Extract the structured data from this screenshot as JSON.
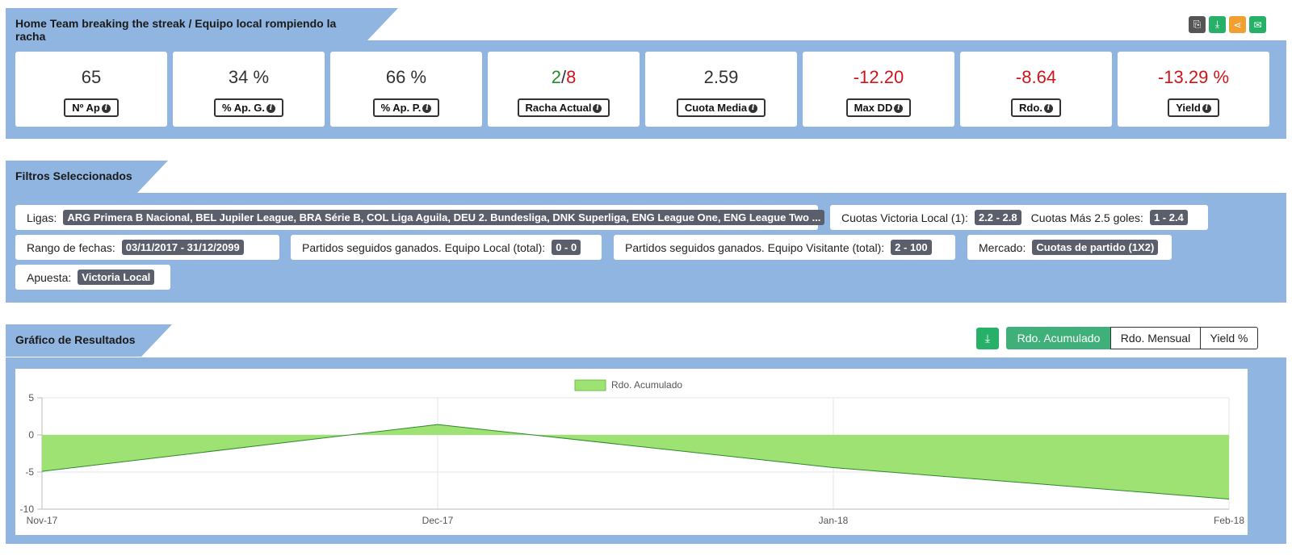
{
  "header": {
    "title": "Home Team breaking the streak / Equipo local rompiendo la racha",
    "actions": [
      {
        "name": "copy-icon",
        "glyph": "⎘",
        "color": "#555555"
      },
      {
        "name": "download-icon",
        "glyph": "⤓",
        "color": "#27b067"
      },
      {
        "name": "share-icon",
        "glyph": "⋖",
        "color": "#f0a030"
      },
      {
        "name": "email-icon",
        "glyph": "✉",
        "color": "#27b067"
      }
    ]
  },
  "kpis": [
    {
      "value": "65",
      "label": "Nº Ap"
    },
    {
      "value": "34 %",
      "label": "% Ap. G."
    },
    {
      "value": "66 %",
      "label": "% Ap. P."
    },
    {
      "value_a": "2",
      "value_sep": "/",
      "value_b": "8",
      "label": "Racha Actual"
    },
    {
      "value": "2.59",
      "label": "Cuota Media"
    },
    {
      "value": "-12.20",
      "label": "Max DD"
    },
    {
      "value": "-8.64",
      "label": "Rdo."
    },
    {
      "value": "-13.29 %",
      "label": "Yield"
    }
  ],
  "filters": {
    "title": "Filtros Seleccionados",
    "ligas": {
      "label": "Ligas:",
      "value": "ARG Primera B Nacional, BEL Jupiler League, BRA Série B, COL Liga Aguila, DEU 2. Bundesliga, DNK Superliga, ENG League One, ENG League Two ..."
    },
    "cuotas": {
      "label1": "Cuotas Victoria Local (1):",
      "value1": "2.2 - 2.8",
      "label2": "Cuotas Más 2.5 goles:",
      "value2": "1 - 2.4"
    },
    "fechas": {
      "label": "Rango de fechas:",
      "value": "03/11/2017 - 31/12/2099"
    },
    "local": {
      "label": "Partidos seguidos ganados. Equipo Local (total):",
      "value": "0 - 0"
    },
    "visitante": {
      "label": "Partidos seguidos ganados. Equipo Visitante (total):",
      "value": "2 - 100"
    },
    "mercado": {
      "label": "Mercado:",
      "value": "Cuotas de partido (1X2)"
    },
    "apuesta": {
      "label": "Apuesta:",
      "value": "Victoria Local"
    }
  },
  "results": {
    "title": "Gráfico de Resultados",
    "tabs": [
      "Rdo. Acumulado",
      "Rdo. Mensual",
      "Yield %"
    ],
    "active_tab": 0
  },
  "chart_data": {
    "type": "area",
    "categories": [
      "Nov-17",
      "Dec-17",
      "Jan-18",
      "Feb-18"
    ],
    "series": [
      {
        "name": "Rdo. Acumulado",
        "values": [
          -4.9,
          1.4,
          -4.4,
          -8.64
        ]
      }
    ],
    "ylim": [
      -10,
      5
    ],
    "yticks": [
      5,
      0,
      -5,
      -10
    ],
    "grid": true,
    "legend": "top",
    "fill_color": "#9de272",
    "line_color": "#2a8a2a"
  }
}
